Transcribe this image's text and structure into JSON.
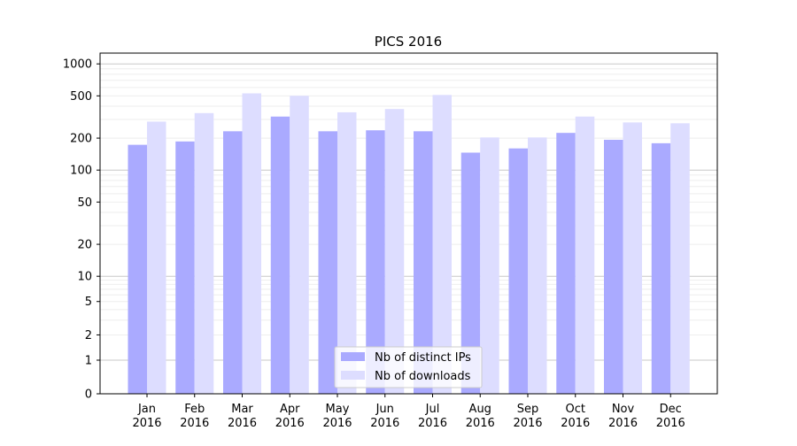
{
  "chart_data": {
    "type": "bar",
    "title": "PICS 2016",
    "xlabel": "",
    "ylabel": "",
    "yscale": "symlog",
    "ylim": [
      0,
      1100
    ],
    "yticks": [
      0,
      1,
      2,
      5,
      10,
      20,
      50,
      100,
      200,
      500,
      1000
    ],
    "grid": true,
    "legend_position": "bottom-center",
    "categories": [
      "Jan\n2016",
      "Feb\n2016",
      "Mar\n2016",
      "Apr\n2016",
      "May\n2016",
      "Jun\n2016",
      "Jul\n2016",
      "Aug\n2016",
      "Sep\n2016",
      "Oct\n2016",
      "Nov\n2016",
      "Dec\n2016"
    ],
    "series": [
      {
        "name": "Nb of distinct IPs",
        "color": "#aaaaff",
        "values": [
          173,
          186,
          232,
          319,
          232,
          237,
          232,
          146,
          160,
          224,
          193,
          179
        ]
      },
      {
        "name": "Nb of downloads",
        "color": "#ddddff",
        "values": [
          286,
          344,
          528,
          500,
          350,
          376,
          510,
          203,
          203,
          319,
          281,
          276
        ]
      }
    ]
  }
}
